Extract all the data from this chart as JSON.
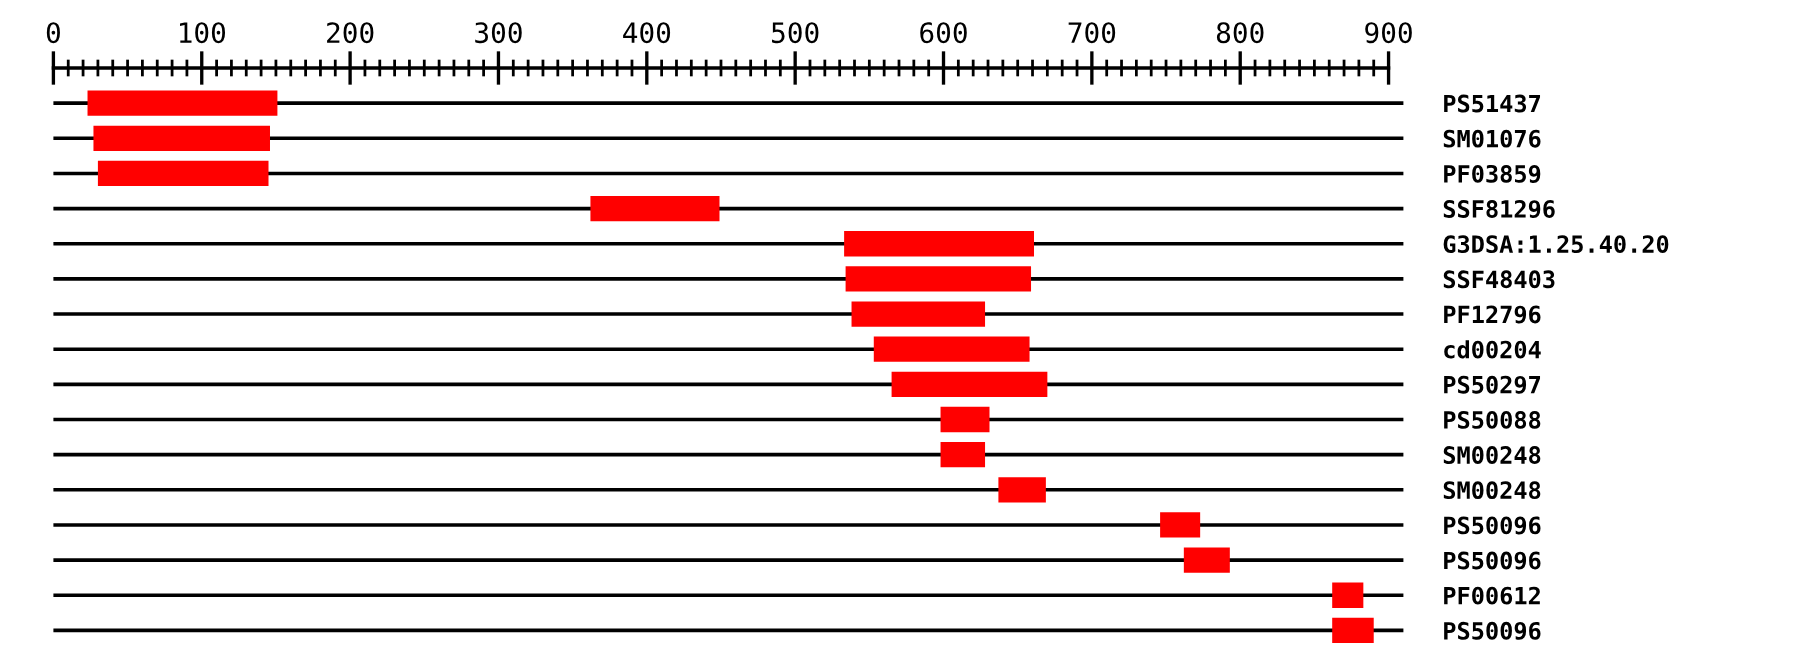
{
  "chart_data": {
    "type": "bar",
    "orientation": "horizontal",
    "categories": [
      "PS51437",
      "SM01076",
      "PF03859",
      "SSF81296",
      "G3DSA:1.25.40.20",
      "SSF48403",
      "PF12796",
      "cd00204",
      "PS50297",
      "PS50088",
      "SM00248",
      "SM00248",
      "PS50096",
      "PS50096",
      "PF00612",
      "PS50096"
    ],
    "base": [
      23,
      27,
      30,
      362,
      533,
      534,
      538,
      553,
      565,
      598,
      598,
      637,
      746,
      762,
      862,
      862
    ],
    "values": [
      128,
      119,
      115,
      87,
      128,
      125,
      90,
      105,
      105,
      33,
      30,
      32,
      27,
      31,
      21,
      28
    ],
    "color": "#ff0000",
    "xlim": [
      0,
      910
    ],
    "xticks": [
      0,
      {
        "value": 10,
        "label": null
      },
      {
        "value": 20,
        "label": null
      },
      {
        "value": 30,
        "label": null
      },
      {
        "value": 40,
        "label": null
      },
      {
        "value": 50,
        "label": null
      },
      {
        "value": 60,
        "label": null
      },
      {
        "value": 70,
        "label": null
      },
      {
        "value": 80,
        "label": null
      },
      {
        "value": 90,
        "label": null
      },
      100,
      {
        "value": 110,
        "label": null
      },
      {
        "value": 120,
        "label": null
      },
      {
        "value": 130,
        "label": null
      },
      {
        "value": 140,
        "label": null
      },
      {
        "value": 150,
        "label": null
      },
      {
        "value": 160,
        "label": null
      },
      {
        "value": 170,
        "label": null
      },
      {
        "value": 180,
        "label": null
      },
      {
        "value": 190,
        "label": null
      },
      200,
      {
        "value": 210,
        "label": null
      },
      {
        "value": 220,
        "label": null
      },
      {
        "value": 230,
        "label": null
      },
      {
        "value": 240,
        "label": null
      },
      {
        "value": 250,
        "label": null
      },
      {
        "value": 260,
        "label": null
      },
      {
        "value": 270,
        "label": null
      },
      {
        "value": 280,
        "label": null
      },
      {
        "value": 290,
        "label": null
      },
      300,
      {
        "value": 310,
        "label": null
      },
      {
        "value": 320,
        "label": null
      },
      {
        "value": 330,
        "label": null
      },
      {
        "value": 340,
        "label": null
      },
      {
        "value": 350,
        "label": null
      },
      {
        "value": 360,
        "label": null
      },
      {
        "value": 370,
        "label": null
      },
      {
        "value": 380,
        "label": null
      },
      {
        "value": 390,
        "label": null
      },
      400,
      {
        "value": 410,
        "label": null
      },
      {
        "value": 420,
        "label": null
      },
      {
        "value": 430,
        "label": null
      },
      {
        "value": 440,
        "label": null
      },
      {
        "value": 450,
        "label": null
      },
      {
        "value": 460,
        "label": null
      },
      {
        "value": 470,
        "label": null
      },
      {
        "value": 480,
        "label": null
      },
      {
        "value": 490,
        "label": null
      },
      500,
      {
        "value": 510,
        "label": null
      },
      {
        "value": 520,
        "label": null
      },
      {
        "value": 530,
        "label": null
      },
      {
        "value": 540,
        "label": null
      },
      {
        "value": 550,
        "label": null
      },
      {
        "value": 560,
        "label": null
      },
      {
        "value": 570,
        "label": null
      },
      {
        "value": 580,
        "label": null
      },
      {
        "value": 590,
        "label": null
      },
      600,
      {
        "value": 610,
        "label": null
      },
      {
        "value": 620,
        "label": null
      },
      {
        "value": 630,
        "label": null
      },
      {
        "value": 640,
        "label": null
      },
      {
        "value": 650,
        "label": null
      },
      {
        "value": 660,
        "label": null
      },
      {
        "value": 670,
        "label": null
      },
      {
        "value": 680,
        "label": null
      },
      {
        "value": 690,
        "label": null
      },
      700,
      {
        "value": 710,
        "label": null
      },
      {
        "value": 720,
        "label": null
      },
      {
        "value": 730,
        "label": null
      },
      {
        "value": 740,
        "label": null
      },
      {
        "value": 750,
        "label": null
      },
      {
        "value": 760,
        "label": null
      },
      {
        "value": 770,
        "label": null
      },
      {
        "value": 780,
        "label": null
      },
      {
        "value": 790,
        "label": null
      },
      800,
      {
        "value": 810,
        "label": null
      },
      {
        "value": 820,
        "label": null
      },
      {
        "value": 830,
        "label": null
      },
      {
        "value": 840,
        "label": null
      },
      {
        "value": 850,
        "label": null
      },
      {
        "value": 860,
        "label": null
      },
      {
        "value": 870,
        "label": null
      },
      {
        "value": 880,
        "label": null
      },
      {
        "value": 890,
        "label": null
      },
      900
    ],
    "grid": "y"
  }
}
